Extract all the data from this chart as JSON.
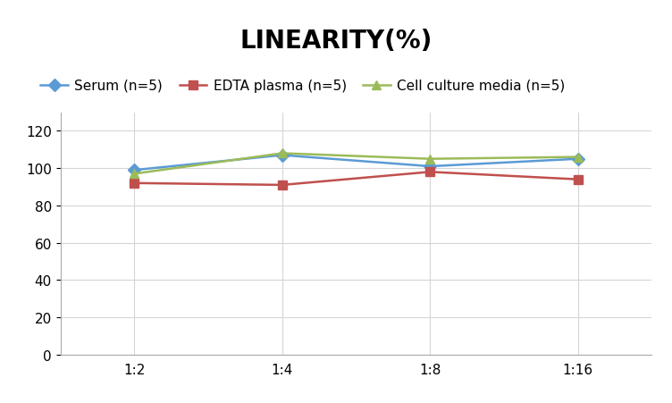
{
  "title": "LINEARITY(%)",
  "x_labels": [
    "1:2",
    "1:4",
    "1:8",
    "1:16"
  ],
  "x_positions": [
    0,
    1,
    2,
    3
  ],
  "series": [
    {
      "label": "Serum (n=5)",
      "color": "#5b9bd5",
      "marker": "D",
      "values": [
        99,
        107,
        101,
        105
      ]
    },
    {
      "label": "EDTA plasma (n=5)",
      "color": "#c0504d",
      "marker": "s",
      "values": [
        92,
        91,
        98,
        94
      ]
    },
    {
      "label": "Cell culture media (n=5)",
      "color": "#9bbb59",
      "marker": "^",
      "values": [
        97,
        108,
        105,
        106
      ]
    }
  ],
  "ylim": [
    0,
    130
  ],
  "yticks": [
    0,
    20,
    40,
    60,
    80,
    100,
    120
  ],
  "title_fontsize": 20,
  "legend_fontsize": 11,
  "tick_fontsize": 11,
  "background_color": "#ffffff",
  "grid_color": "#d5d5d5",
  "title_fontweight": "bold"
}
